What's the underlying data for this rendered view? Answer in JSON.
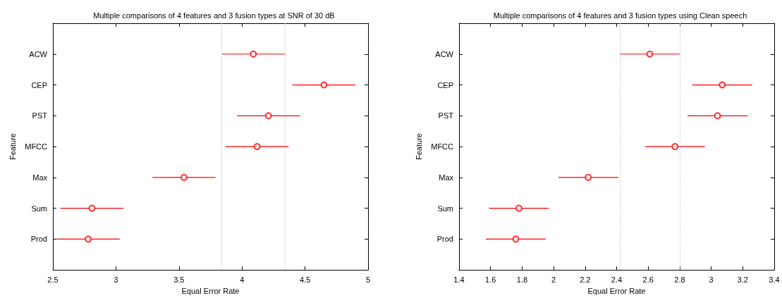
{
  "chart_data": [
    {
      "type": "scatter",
      "orientation": "horizontal",
      "title": "Multiple comparisons of 4 features and 3 fusion types at SNR of 30 dB",
      "xlabel": "Equal Error Rate",
      "ylabel": "Feature",
      "categories": [
        "ACW",
        "CEP",
        "PST",
        "MFCC",
        "Max",
        "Sum",
        "Prod"
      ],
      "series": [
        {
          "color": "#ff0000",
          "values": [
            4.09,
            4.65,
            4.21,
            4.12,
            3.54,
            2.81,
            2.78
          ],
          "errors": [
            0.25,
            0.25,
            0.25,
            0.25,
            0.25,
            0.25,
            0.25
          ]
        }
      ],
      "marker": "circle",
      "xlim": [
        2.5,
        5
      ],
      "xticks": [
        2.5,
        3,
        3.5,
        4,
        4.5,
        5
      ],
      "grid": false,
      "ref_lines": [
        {
          "axis": "x",
          "value": 3.84,
          "color": "#c8c8c8",
          "line_style": "dotted"
        },
        {
          "axis": "x",
          "value": 4.34,
          "color": "#c8c8c8",
          "line_style": "dotted"
        }
      ]
    },
    {
      "type": "scatter",
      "orientation": "horizontal",
      "title": "Multiple comparisons of 4 features and 3 fusion types using Clean speech",
      "xlabel": "Equal Error Rate",
      "ylabel": "Feature",
      "categories": [
        "ACW",
        "CEP",
        "PST",
        "MFCC",
        "Max",
        "Sum",
        "Prod"
      ],
      "series": [
        {
          "color": "#ff0000",
          "values": [
            2.61,
            3.07,
            3.04,
            2.77,
            2.22,
            1.78,
            1.76
          ],
          "errors": [
            0.19,
            0.19,
            0.19,
            0.19,
            0.19,
            0.19,
            0.19
          ]
        }
      ],
      "marker": "circle",
      "xlim": [
        1.4,
        3.4
      ],
      "xticks": [
        1.4,
        1.6,
        1.8,
        2,
        2.2,
        2.4,
        2.6,
        2.8,
        3,
        3.2,
        3.4
      ],
      "grid": false,
      "ref_lines": [
        {
          "axis": "x",
          "value": 2.42,
          "color": "#c8c8c8",
          "line_style": "dotted"
        },
        {
          "axis": "x",
          "value": 2.8,
          "color": "#c8c8c8",
          "line_style": "dotted"
        }
      ]
    }
  ]
}
